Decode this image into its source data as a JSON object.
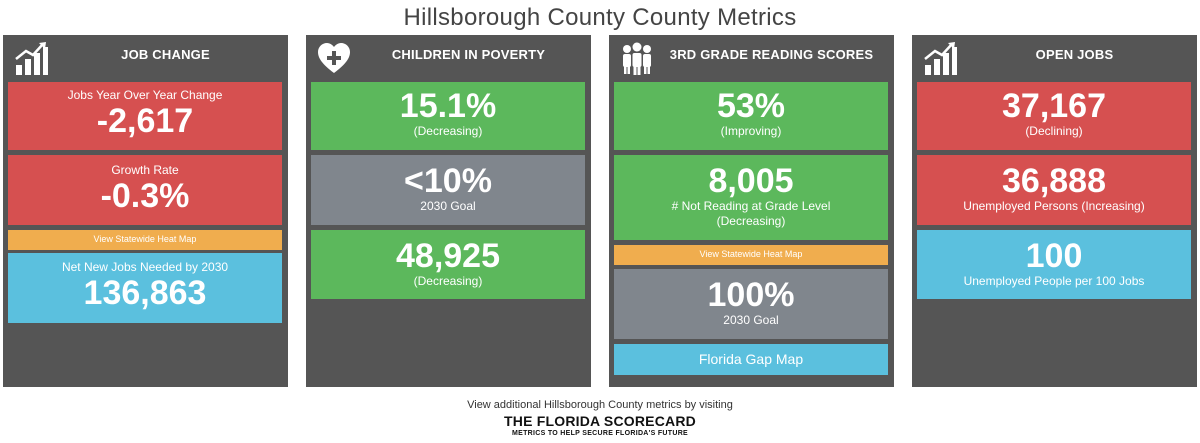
{
  "page": {
    "title": "Hillsborough County County Metrics"
  },
  "panels": [
    {
      "title": "JOB CHANGE",
      "icon": "bar-chart-icon",
      "tiles": {
        "jobs_yoy": {
          "label": "Jobs Year Over Year Change",
          "value": "-2,617"
        },
        "growth_rate": {
          "label": "Growth Rate",
          "value": "-0.3%"
        },
        "heat_map_link": {
          "label": "View Statewide Heat Map"
        },
        "net_new": {
          "label": "Net New Jobs Needed by 2030",
          "value": "136,863"
        }
      }
    },
    {
      "title": "CHILDREN IN POVERTY",
      "icon": "heart-plus-icon",
      "tiles": {
        "current": {
          "value": "15.1%",
          "label": "(Decreasing)"
        },
        "goal": {
          "value": "<10%",
          "label": "2030 Goal"
        },
        "count": {
          "value": "48,925",
          "label": "(Decreasing)"
        }
      }
    },
    {
      "title": "3RD GRADE READING SCORES",
      "icon": "people-icon",
      "tiles": {
        "current": {
          "value": "53%",
          "label": "(Improving)"
        },
        "not_reading": {
          "value": "8,005",
          "label": "# Not Reading at Grade Level",
          "label2": "(Decreasing)"
        },
        "heat_map_link": {
          "label": "View Statewide Heat Map"
        },
        "goal": {
          "value": "100%",
          "label": "2030 Goal"
        },
        "gap_map": {
          "label": "Florida Gap Map"
        }
      }
    },
    {
      "title": "OPEN JOBS",
      "icon": "bar-chart-icon",
      "tiles": {
        "open": {
          "value": "37,167",
          "label": "(Declining)"
        },
        "unemployed": {
          "value": "36,888",
          "label": "Unemployed Persons (Increasing)"
        },
        "ratio": {
          "value": "100",
          "label": "Unemployed People per 100 Jobs"
        }
      }
    }
  ],
  "footer": {
    "text": "View additional Hillsborough County metrics by visiting",
    "logo_main": "THE FLORIDA SCORECARD",
    "logo_sub": "METRICS TO HELP SECURE FLORIDA'S FUTURE"
  },
  "colors": {
    "panel": "#555555",
    "red": "#d65050",
    "green": "#5cb85c",
    "gray": "#80868d",
    "blue": "#5bc0de",
    "orange": "#f0ad4e"
  }
}
